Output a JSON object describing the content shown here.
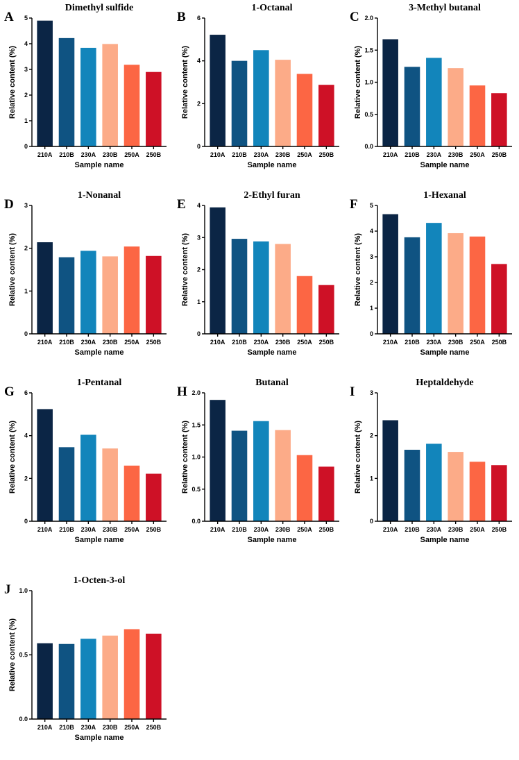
{
  "palette": [
    "#0b2545",
    "#0f5382",
    "#1285bb",
    "#fcab88",
    "#fc6644",
    "#ce1126"
  ],
  "chart_data": [
    {
      "panel": "A",
      "type": "bar",
      "title": "Dimethyl sulfide",
      "categories": [
        "210A",
        "210B",
        "230A",
        "230B",
        "250A",
        "250B"
      ],
      "values": [
        4.9,
        4.22,
        3.84,
        3.99,
        3.18,
        2.9
      ],
      "ylim": [
        0,
        5
      ],
      "yticks": [
        "0",
        "1",
        "2",
        "3",
        "4",
        "5"
      ],
      "xlabel": "Sample name",
      "ylabel": "Relative content (%)"
    },
    {
      "panel": "B",
      "type": "bar",
      "title": "1-Octanal",
      "categories": [
        "210A",
        "210B",
        "230A",
        "230B",
        "250A",
        "250B"
      ],
      "values": [
        5.22,
        4.0,
        4.5,
        4.05,
        3.39,
        2.88
      ],
      "ylim": [
        0,
        6
      ],
      "yticks": [
        "0",
        "2",
        "4",
        "6"
      ],
      "xlabel": "Sample name",
      "ylabel": "Relative content (%)"
    },
    {
      "panel": "C",
      "type": "bar",
      "title": "3-Methyl butanal",
      "categories": [
        "210A",
        "210B",
        "230A",
        "230B",
        "250A",
        "250B"
      ],
      "values": [
        1.67,
        1.24,
        1.38,
        1.22,
        0.95,
        0.83
      ],
      "ylim": [
        0,
        2.0
      ],
      "yticks": [
        "0.0",
        "0.5",
        "1.0",
        "1.5",
        "2.0"
      ],
      "xlabel": "Sample name",
      "ylabel": "Relative content (%)"
    },
    {
      "panel": "D",
      "type": "bar",
      "title": "1-Nonanal",
      "categories": [
        "210A",
        "210B",
        "230A",
        "230B",
        "250A",
        "250B"
      ],
      "values": [
        2.14,
        1.79,
        1.94,
        1.81,
        2.04,
        1.82
      ],
      "ylim": [
        0,
        3
      ],
      "yticks": [
        "0",
        "1",
        "2",
        "3"
      ],
      "xlabel": "Sample name",
      "ylabel": "Relative content (%)"
    },
    {
      "panel": "E",
      "type": "bar",
      "title": "2-Ethyl furan",
      "categories": [
        "210A",
        "210B",
        "230A",
        "230B",
        "250A",
        "250B"
      ],
      "values": [
        3.94,
        2.96,
        2.88,
        2.8,
        1.8,
        1.52
      ],
      "ylim": [
        0,
        4
      ],
      "yticks": [
        "0",
        "1",
        "2",
        "3",
        "4"
      ],
      "xlabel": "Sample name",
      "ylabel": "Relative content (%)"
    },
    {
      "panel": "F",
      "type": "bar",
      "title": "1-Hexanal",
      "categories": [
        "210A",
        "210B",
        "230A",
        "230B",
        "250A",
        "250B"
      ],
      "values": [
        4.66,
        3.76,
        4.32,
        3.92,
        3.79,
        2.72
      ],
      "ylim": [
        0,
        5
      ],
      "yticks": [
        "0",
        "1",
        "2",
        "3",
        "4",
        "5"
      ],
      "xlabel": "Sample name",
      "ylabel": "Relative content (%)"
    },
    {
      "panel": "G",
      "type": "bar",
      "title": "1-Pentanal",
      "categories": [
        "210A",
        "210B",
        "230A",
        "230B",
        "250A",
        "250B"
      ],
      "values": [
        5.24,
        3.46,
        4.04,
        3.4,
        2.6,
        2.22
      ],
      "ylim": [
        0,
        6
      ],
      "yticks": [
        "0",
        "2",
        "4",
        "6"
      ],
      "xlabel": "Sample name",
      "ylabel": "Relative content (%)"
    },
    {
      "panel": "H",
      "type": "bar",
      "title": "Butanal",
      "categories": [
        "210A",
        "210B",
        "230A",
        "230B",
        "250A",
        "250B"
      ],
      "values": [
        1.89,
        1.41,
        1.56,
        1.42,
        1.03,
        0.85
      ],
      "ylim": [
        0,
        2.0
      ],
      "yticks": [
        "0.0",
        "0.5",
        "1.0",
        "1.5",
        "2.0"
      ],
      "xlabel": "Sample name",
      "ylabel": "Relative content (%)"
    },
    {
      "panel": "I",
      "type": "bar",
      "title": "Heptaldehyde",
      "categories": [
        "210A",
        "210B",
        "230A",
        "230B",
        "250A",
        "250B"
      ],
      "values": [
        2.36,
        1.67,
        1.81,
        1.62,
        1.39,
        1.31
      ],
      "ylim": [
        0,
        3
      ],
      "yticks": [
        "0",
        "1",
        "2",
        "3"
      ],
      "xlabel": "Sample name",
      "ylabel": "Relative content (%)"
    },
    {
      "panel": "J",
      "type": "bar",
      "title": "1-Octen-3-ol",
      "categories": [
        "210A",
        "210B",
        "230A",
        "230B",
        "250A",
        "250B"
      ],
      "values": [
        0.59,
        0.585,
        0.625,
        0.65,
        0.7,
        0.665
      ],
      "ylim": [
        0,
        1.0
      ],
      "yticks": [
        "0.0",
        "0.5",
        "1.0"
      ],
      "xlabel": "Sample name",
      "ylabel": "Relative content (%)"
    }
  ]
}
